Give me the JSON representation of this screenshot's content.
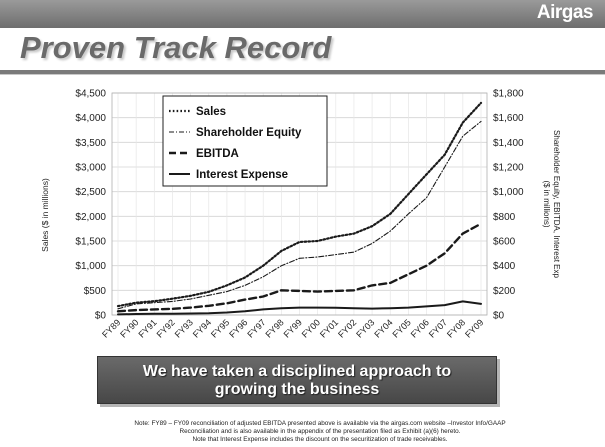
{
  "header": {
    "logo_text": "Airgas"
  },
  "page": {
    "title": "Proven Track Record"
  },
  "banner": {
    "line1": "We have taken a disciplined approach to",
    "line2": "growing the business"
  },
  "footnote": {
    "line1": "Note: FY89 – FY09 reconciliation of adjusted EBITDA presented above is available via the airgas.com website –Investor Info/GAAP",
    "line2": "Reconciliation and is also available in the appendix of the presentation filed as Exhibit (a)(6) hereto.",
    "line3": "Note that Interest Expense includes the discount on the securitization of trade receivables."
  },
  "chart_data": {
    "type": "line",
    "title": "",
    "xlabel": "",
    "ylabel": "Sales ($ in millions)",
    "y2label": "Shareholder Equity, EBITDA, Interest Exp ($ in millions)",
    "categories": [
      "FY89",
      "FY90",
      "FY91",
      "FY92",
      "FY93",
      "FY94",
      "FY95",
      "FY96",
      "FY97",
      "FY98",
      "FY99",
      "FY00",
      "FY01",
      "FY02",
      "FY03",
      "FY04",
      "FY05",
      "FY06",
      "FY07",
      "FY08",
      "FY09"
    ],
    "ylim": [
      0,
      4500
    ],
    "y2lim": [
      0,
      1800
    ],
    "y_ticks": [
      "$0",
      "$500",
      "$1,000",
      "$1,500",
      "$2,000",
      "$2,500",
      "$3,000",
      "$3,500",
      "$4,000",
      "$4,500"
    ],
    "y2_ticks": [
      "$0",
      "$200",
      "$400",
      "$600",
      "$800",
      "$1,000",
      "$1,200",
      "$1,400",
      "$1,600",
      "$1,800"
    ],
    "legend_position": "top-left",
    "series": [
      {
        "name": "Sales",
        "axis": "left",
        "dash": "dotted",
        "values": [
          180,
          250,
          280,
          330,
          390,
          470,
          600,
          760,
          1000,
          1300,
          1480,
          1500,
          1590,
          1650,
          1800,
          2050,
          2450,
          2850,
          3250,
          3900,
          4300
        ]
      },
      {
        "name": "Shareholder Equity",
        "axis": "right",
        "dash": "dashdot",
        "values": [
          50,
          90,
          100,
          110,
          130,
          160,
          190,
          240,
          310,
          400,
          460,
          470,
          490,
          510,
          580,
          680,
          820,
          950,
          1200,
          1450,
          1570
        ]
      },
      {
        "name": "EBITDA",
        "axis": "right",
        "dash": "dashed",
        "values": [
          30,
          40,
          45,
          50,
          60,
          75,
          95,
          125,
          150,
          200,
          195,
          190,
          195,
          200,
          240,
          260,
          330,
          400,
          500,
          660,
          740
        ]
      },
      {
        "name": "Interest Expense",
        "axis": "right",
        "dash": "solid",
        "values": [
          5,
          8,
          10,
          10,
          12,
          15,
          20,
          30,
          45,
          55,
          60,
          60,
          58,
          55,
          52,
          55,
          60,
          70,
          80,
          110,
          90
        ]
      }
    ]
  }
}
